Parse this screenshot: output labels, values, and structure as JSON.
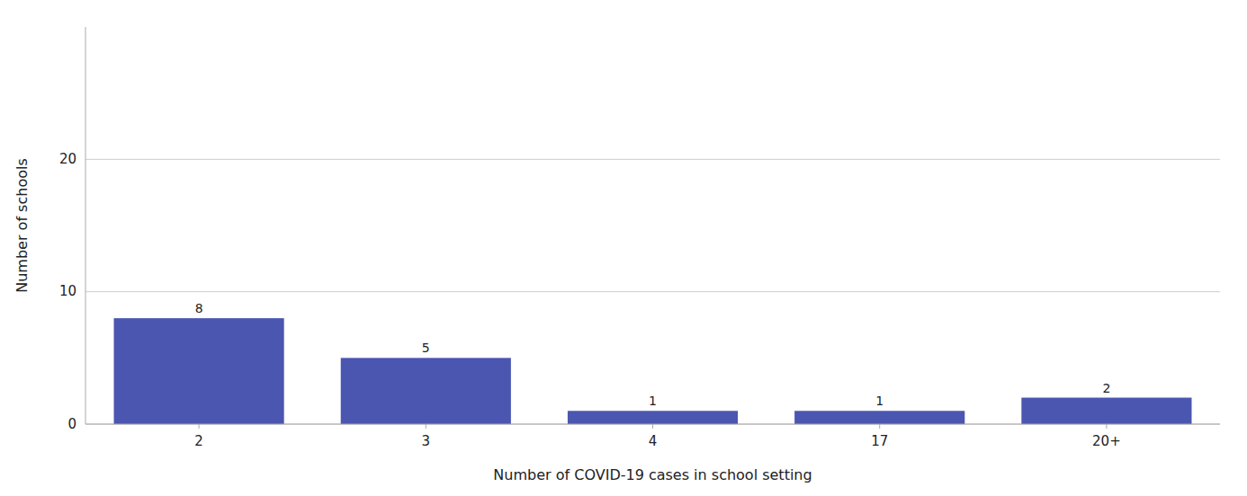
{
  "chart_data": {
    "type": "bar",
    "categories": [
      "2",
      "3",
      "4",
      "17",
      "20+"
    ],
    "values": [
      8,
      5,
      1,
      1,
      2
    ],
    "color": "#4a56b0",
    "xlabel": "Number of COVID-19 cases in school setting",
    "ylabel": "Number of schools",
    "ylim": [
      0,
      30
    ],
    "yticks": [
      0,
      10,
      20
    ],
    "grid": true,
    "data_labels": true
  }
}
